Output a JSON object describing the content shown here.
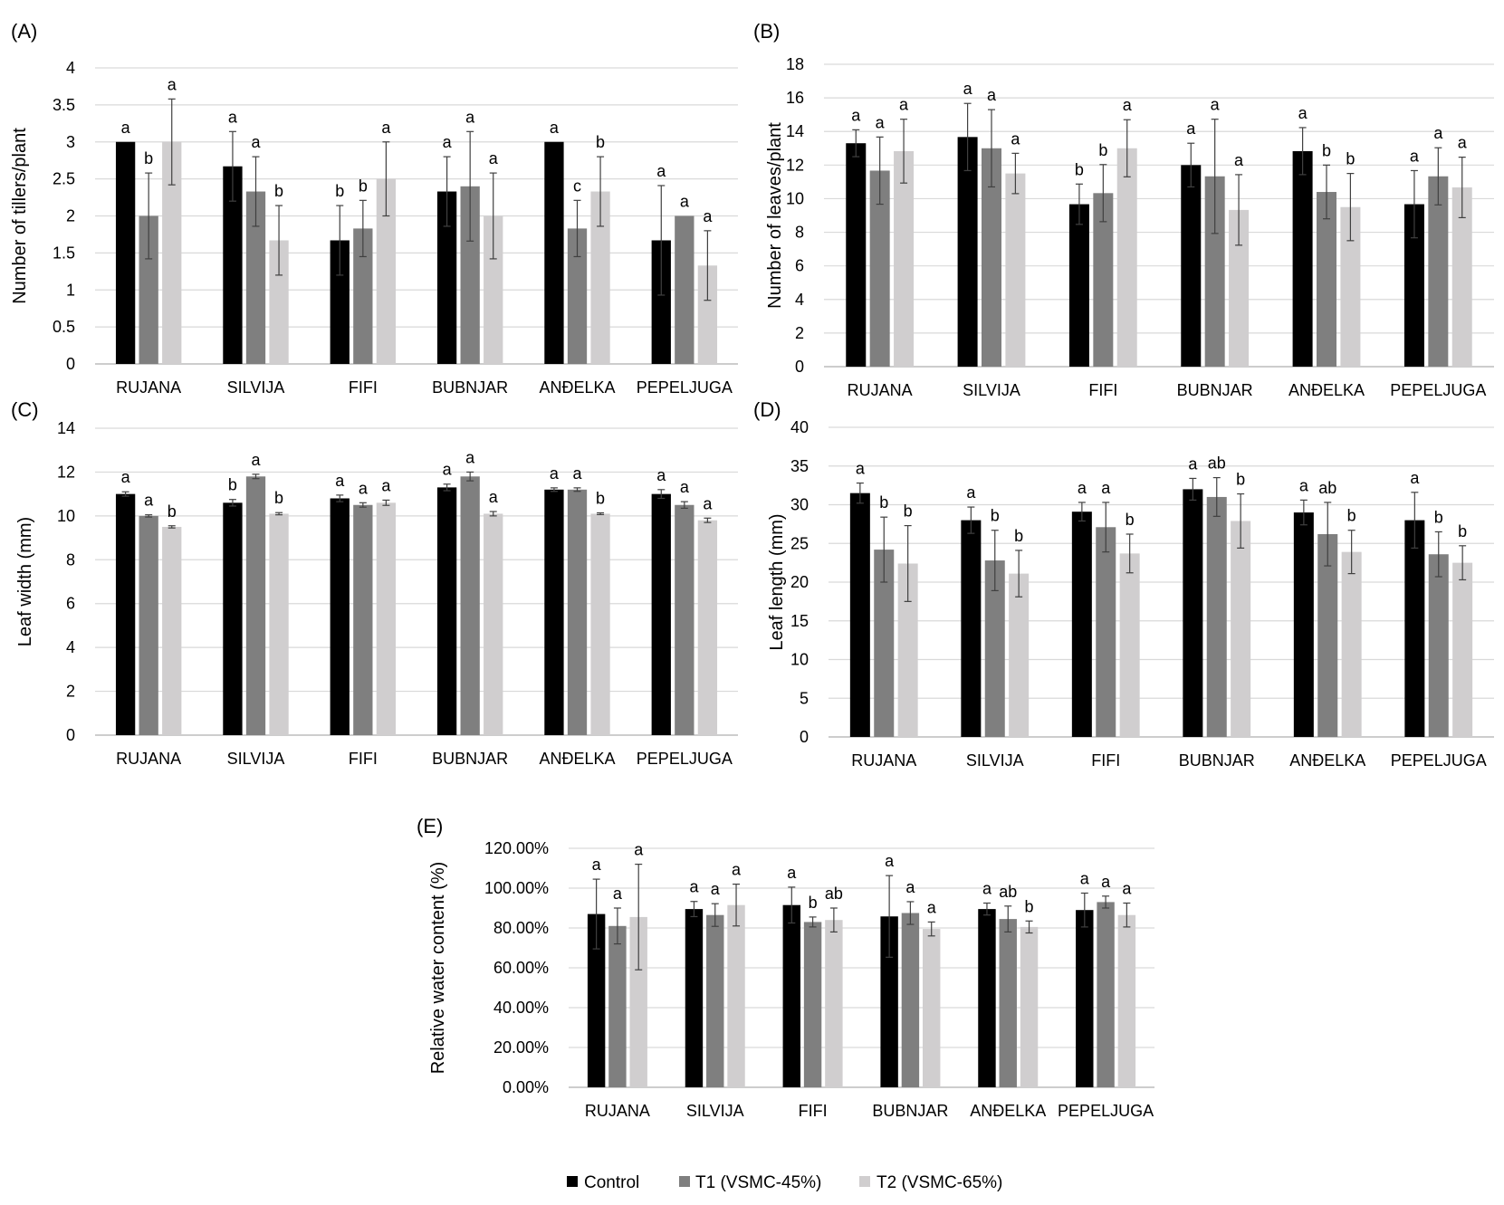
{
  "legend": {
    "items": [
      {
        "label": "Control",
        "color": "#000000"
      },
      {
        "label": "T1 (VSMC-45%)",
        "color": "#7f7f7f"
      },
      {
        "label": "T2 (VSMC-65%)",
        "color": "#d0cecf"
      }
    ]
  },
  "chart_data": [
    {
      "panel": "(A)",
      "type": "bar",
      "ylabel": "Number of tillers/plant",
      "ylim": [
        0,
        4
      ],
      "yticks": [
        "0",
        "0.5",
        "1",
        "1.5",
        "2",
        "2.5",
        "3",
        "3.5",
        "4"
      ],
      "categories": [
        "RUJANA",
        "SILVIJA",
        "FIFI",
        "BUBNJAR",
        "ANĐELKA",
        "PEPELJUGA"
      ],
      "series": [
        {
          "name": "Control",
          "values": [
            3.0,
            2.67,
            1.67,
            2.33,
            3.0,
            1.67
          ],
          "errors": [
            0,
            0.47,
            0.47,
            0.47,
            0,
            0.74
          ],
          "letters": [
            "a",
            "a",
            "b",
            "a",
            "a",
            "a"
          ]
        },
        {
          "name": "T1 (VSMC-45%)",
          "values": [
            2.0,
            2.33,
            1.83,
            2.4,
            1.83,
            2.0
          ],
          "errors": [
            0.58,
            0.47,
            0.38,
            0.74,
            0.38,
            0
          ],
          "letters": [
            "b",
            "a",
            "b",
            "a",
            "c",
            "a"
          ]
        },
        {
          "name": "T2 (VSMC-65%)",
          "values": [
            3.0,
            1.67,
            2.5,
            2.0,
            2.33,
            1.33
          ],
          "errors": [
            0.58,
            0.47,
            0.5,
            0.58,
            0.47,
            0.47
          ],
          "letters": [
            "a",
            "b",
            "a",
            "a",
            "b",
            "a"
          ]
        }
      ]
    },
    {
      "panel": "(B)",
      "type": "bar",
      "ylabel": "Number of leaves/plant",
      "ylim": [
        0,
        18
      ],
      "yticks": [
        "0",
        "2",
        "4",
        "6",
        "8",
        "10",
        "12",
        "14",
        "16",
        "18"
      ],
      "categories": [
        "RUJANA",
        "SILVIJA",
        "FIFI",
        "BUBNJAR",
        "ANĐELKA",
        "PEPELJUGA"
      ],
      "series": [
        {
          "name": "Control",
          "values": [
            13.3,
            13.67,
            9.67,
            12.0,
            12.83,
            9.67
          ],
          "errors": [
            0.8,
            2.0,
            1.2,
            1.3,
            1.4,
            2.0
          ],
          "letters": [
            "a",
            "a",
            "b",
            "a",
            "a",
            "a"
          ]
        },
        {
          "name": "T1 (VSMC-45%)",
          "values": [
            11.67,
            13.0,
            10.33,
            11.33,
            10.4,
            11.33
          ],
          "errors": [
            2.0,
            2.3,
            1.7,
            3.4,
            1.6,
            1.7
          ],
          "letters": [
            "a",
            "a",
            "b",
            "a",
            "b",
            "a"
          ]
        },
        {
          "name": "T2 (VSMC-65%)",
          "values": [
            12.83,
            11.5,
            13.0,
            9.33,
            9.5,
            10.67
          ],
          "errors": [
            1.9,
            1.2,
            1.7,
            2.1,
            2.0,
            1.8
          ],
          "letters": [
            "a",
            "a",
            "a",
            "a",
            "b",
            "a"
          ]
        }
      ]
    },
    {
      "panel": "(C)",
      "type": "bar",
      "ylabel": "Leaf width (mm)",
      "ylim": [
        0,
        14
      ],
      "yticks": [
        "0",
        "2",
        "4",
        "6",
        "8",
        "10",
        "12",
        "14"
      ],
      "categories": [
        "RUJANA",
        "SILVIJA",
        "FIFI",
        "BUBNJAR",
        "ANĐELKA",
        "PEPELJUGA"
      ],
      "series": [
        {
          "name": "Control",
          "values": [
            11.0,
            10.6,
            10.8,
            11.3,
            11.2,
            11.0
          ],
          "errors": [
            0.1,
            0.15,
            0.15,
            0.15,
            0.08,
            0.2
          ],
          "letters": [
            "a",
            "b",
            "a",
            "a",
            "a",
            "a"
          ]
        },
        {
          "name": "T1 (VSMC-45%)",
          "values": [
            10.0,
            11.8,
            10.5,
            11.8,
            11.2,
            10.5
          ],
          "errors": [
            0.05,
            0.1,
            0.1,
            0.2,
            0.08,
            0.15
          ],
          "letters": [
            "a",
            "a",
            "a",
            "a",
            "a",
            "a"
          ]
        },
        {
          "name": "T2 (VSMC-65%)",
          "values": [
            9.5,
            10.1,
            10.6,
            10.1,
            10.1,
            9.8
          ],
          "errors": [
            0.05,
            0.05,
            0.12,
            0.1,
            0.04,
            0.1
          ],
          "letters": [
            "b",
            "b",
            "a",
            "a",
            "b",
            "a"
          ]
        }
      ]
    },
    {
      "panel": "(D)",
      "type": "bar",
      "ylabel": "Leaf length (mm)",
      "ylim": [
        0,
        40
      ],
      "yticks": [
        "0",
        "5",
        "10",
        "15",
        "20",
        "25",
        "30",
        "35",
        "40"
      ],
      "categories": [
        "RUJANA",
        "SILVIJA",
        "FIFI",
        "BUBNJAR",
        "ANĐELKA",
        "PEPELJUGA"
      ],
      "series": [
        {
          "name": "Control",
          "values": [
            31.5,
            28.0,
            29.1,
            32.0,
            29.0,
            28.0
          ],
          "errors": [
            1.3,
            1.7,
            1.2,
            1.4,
            1.6,
            3.6
          ],
          "letters": [
            "a",
            "a",
            "a",
            "a",
            "a",
            "a"
          ]
        },
        {
          "name": "T1 (VSMC-45%)",
          "values": [
            24.2,
            22.8,
            27.1,
            31.0,
            26.2,
            23.6
          ],
          "errors": [
            4.2,
            3.9,
            3.2,
            2.5,
            4.1,
            2.9
          ],
          "letters": [
            "b",
            "b",
            "a",
            "ab",
            "ab",
            "b"
          ]
        },
        {
          "name": "T2 (VSMC-65%)",
          "values": [
            22.4,
            21.1,
            23.7,
            27.9,
            23.9,
            22.5
          ],
          "errors": [
            4.9,
            3.0,
            2.5,
            3.5,
            2.8,
            2.2
          ],
          "letters": [
            "b",
            "b",
            "b",
            "b",
            "b",
            "b"
          ]
        }
      ]
    },
    {
      "panel": "(E)",
      "type": "bar",
      "ylabel": "Relative water content (%)",
      "ylim": [
        0,
        120
      ],
      "yticks": [
        "0.00%",
        "20.00%",
        "40.00%",
        "60.00%",
        "80.00%",
        "100.00%",
        "120.00%"
      ],
      "categories": [
        "RUJANA",
        "SILVIJA",
        "FIFI",
        "BUBNJAR",
        "ANĐELKA",
        "PEPELJUGA"
      ],
      "series": [
        {
          "name": "Control",
          "values": [
            87,
            89.5,
            91.5,
            85.8,
            89.5,
            89.0
          ],
          "errors": [
            17.5,
            3.8,
            9.0,
            20.5,
            3.0,
            8.5
          ],
          "letters": [
            "a",
            "a",
            "a",
            "a",
            "a",
            "a"
          ]
        },
        {
          "name": "T1 (VSMC-45%)",
          "values": [
            81,
            86.5,
            83,
            87.5,
            84.5,
            93.0
          ],
          "errors": [
            9.0,
            5.7,
            2.5,
            5.7,
            6.5,
            3.0
          ],
          "letters": [
            "a",
            "a",
            "b",
            "a",
            "ab",
            "a"
          ]
        },
        {
          "name": "T2 (VSMC-65%)",
          "values": [
            85.5,
            91.5,
            84,
            79.5,
            80.5,
            86.5
          ],
          "errors": [
            26.5,
            10.5,
            6.0,
            3.5,
            3.0,
            6.0
          ],
          "letters": [
            "a",
            "a",
            "ab",
            "a",
            "b",
            "a"
          ]
        }
      ]
    }
  ]
}
